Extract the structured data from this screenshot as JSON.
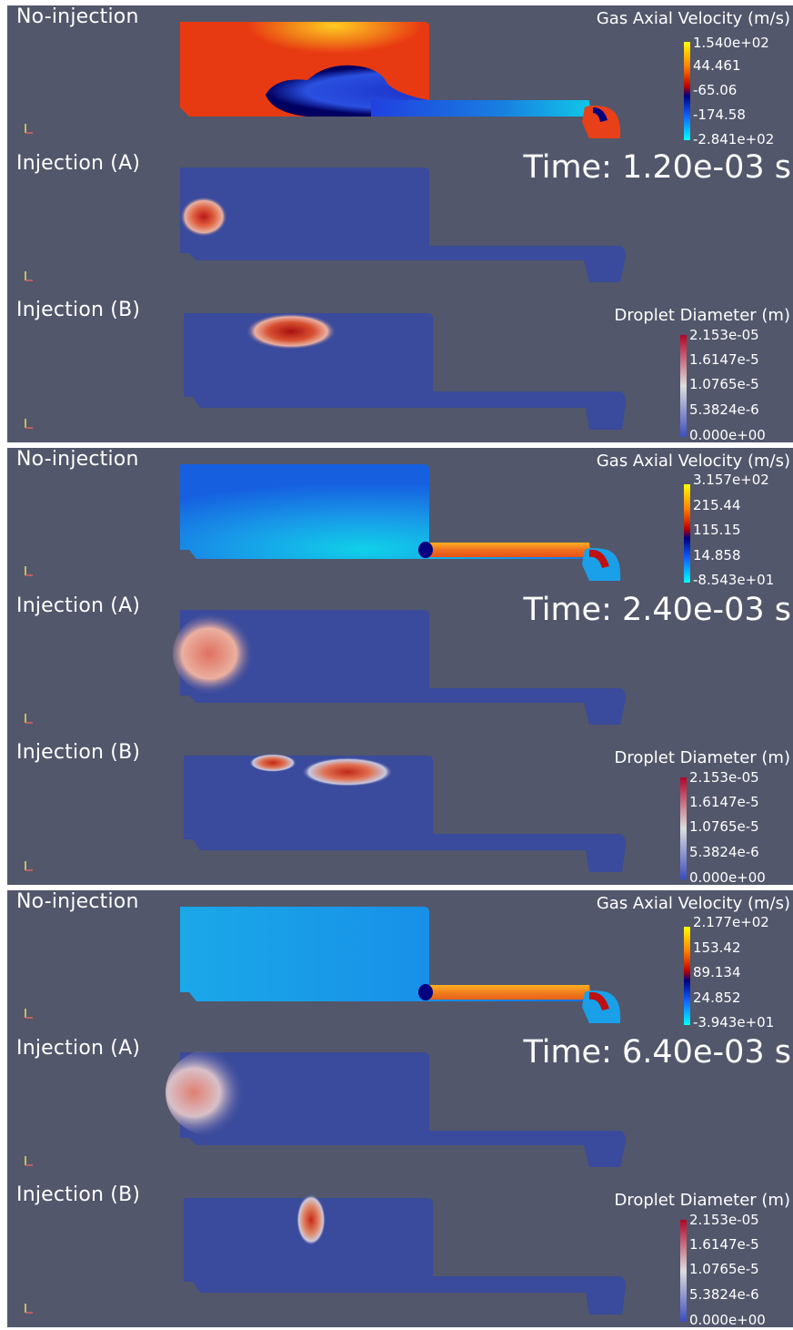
{
  "blocks": [
    {
      "rows": [
        "No-injection",
        "Injection (A)",
        "Injection (B)"
      ],
      "time": "Time: 1.20e-03 s",
      "velocity_legend": {
        "title": "Gas Axial Velocity (m/s)",
        "ticks": [
          "1.540e+02",
          "44.461",
          "-65.06",
          "-174.58",
          "-2.841e+02"
        ]
      },
      "diameter_legend": {
        "title": "Droplet Diameter (m)",
        "ticks": [
          "2.153e-05",
          "1.6147e-5",
          "1.0765e-5",
          "5.3824e-6",
          "0.000e+00"
        ]
      }
    },
    {
      "rows": [
        "No-injection",
        "Injection (A)",
        "Injection (B)"
      ],
      "time": "Time: 2.40e-03 s",
      "velocity_legend": {
        "title": "Gas Axial Velocity (m/s)",
        "ticks": [
          "3.157e+02",
          "215.44",
          "115.15",
          "14.858",
          "-8.543e+01"
        ]
      },
      "diameter_legend": {
        "title": "Droplet Diameter (m)",
        "ticks": [
          "2.153e-05",
          "1.6147e-5",
          "1.0765e-5",
          "5.3824e-6",
          "0.000e+00"
        ]
      }
    },
    {
      "rows": [
        "No-injection",
        "Injection (A)",
        "Injection (B)"
      ],
      "time": "Time: 6.40e-03 s",
      "velocity_legend": {
        "title": "Gas Axial Velocity (m/s)",
        "ticks": [
          "2.177e+02",
          "153.42",
          "89.134",
          "24.852",
          "-3.943e+01"
        ]
      },
      "diameter_legend": {
        "title": "Droplet Diameter (m)",
        "ticks": [
          "2.153e-05",
          "1.6147e-5",
          "1.0765e-5",
          "5.3824e-6",
          "0.000e+00"
        ]
      }
    }
  ],
  "colors": {
    "panel_background": "#52576b",
    "domain_blue": "#3a4a9c",
    "hot_red": "#e03010",
    "cold_cyan": "#00e8f0"
  }
}
